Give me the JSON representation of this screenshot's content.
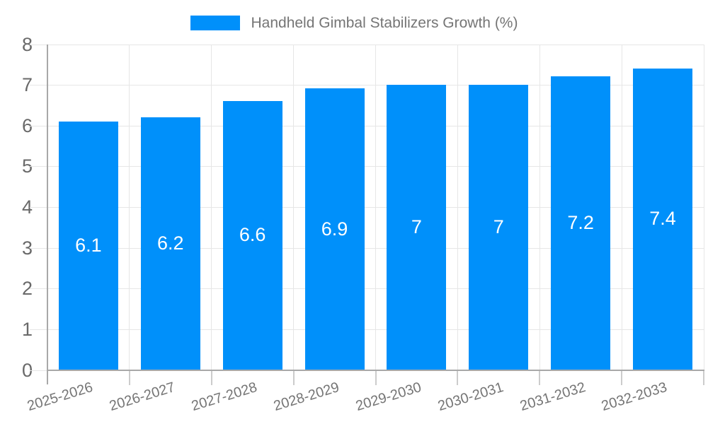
{
  "chart_data": {
    "type": "bar",
    "title": "Handheld Gimbal Stabilizers Growth (%)",
    "categories": [
      "2025-2026",
      "2026-2027",
      "2027-2028",
      "2028-2029",
      "2029-2030",
      "2030-2031",
      "2031-2032",
      "2032-2033"
    ],
    "values": [
      6.1,
      6.2,
      6.6,
      6.9,
      7,
      7,
      7.2,
      7.4
    ],
    "bar_labels": [
      "6.1",
      "6.2",
      "6.6",
      "6.9",
      "7",
      "7",
      "7.2",
      "7.4"
    ],
    "xlabel": "",
    "ylabel": "",
    "ylim": [
      0,
      8
    ],
    "yticks": [
      0,
      1,
      2,
      3,
      4,
      5,
      6,
      7,
      8
    ],
    "grid": true,
    "legend_position": "top-center",
    "legend_entries": [
      "Handheld Gimbal Stabilizers Growth (%)"
    ],
    "colors": {
      "bar": "#0090fa",
      "bar_value_text": "#ffffff",
      "gridline": "#e6e6e6",
      "axis_line": "#a8a8a8",
      "tick_mark": "#cccccc",
      "axis_text": "#757575",
      "y_axis_text": "#696969",
      "background": "#ffffff"
    }
  }
}
